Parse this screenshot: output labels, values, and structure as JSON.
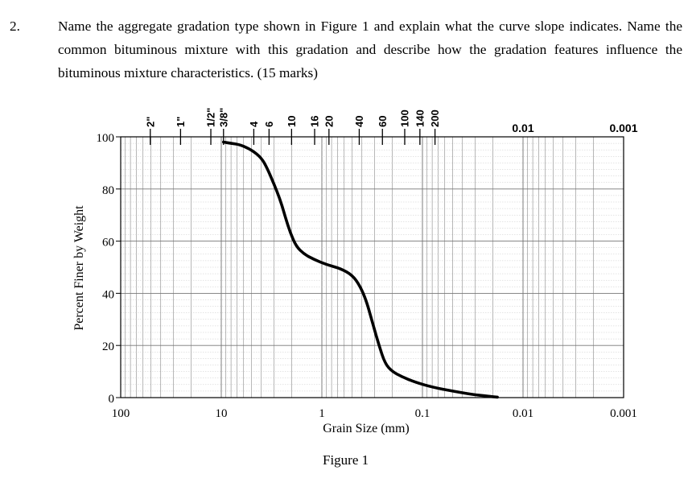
{
  "question": {
    "number": "2.",
    "text": "Name the aggregate gradation type shown in Figure 1 and explain what the curve slope indicates. Name the common bituminous mixture with this gradation and describe how the gradation features influence the bituminous mixture characteristics. (15 marks)"
  },
  "figure_caption": "Figure 1",
  "chart_data": {
    "type": "line",
    "title": "",
    "xlabel": "Grain Size (mm)",
    "ylabel": "Percent Finer by Weight",
    "x_scale": "log",
    "x_reversed": true,
    "xlim": [
      100,
      0.001
    ],
    "ylim": [
      0,
      100
    ],
    "grid": true,
    "x_tick_labels": [
      "100",
      "10",
      "1",
      "0.1",
      "0.01",
      "0.001"
    ],
    "x_top_tick_labels": [
      "0.01",
      "0.001"
    ],
    "y_tick_labels": [
      "0",
      "20",
      "40",
      "60",
      "80",
      "100"
    ],
    "sieve_labels": [
      "2\"",
      "1\"",
      "1/2\"",
      "3/8\"",
      "4",
      "6",
      "10",
      "16",
      "20",
      "40",
      "60",
      "100",
      "140",
      "200"
    ],
    "sieve_sizes_mm": [
      50.8,
      25.4,
      12.7,
      9.5,
      4.75,
      3.35,
      2.0,
      1.18,
      0.85,
      0.425,
      0.25,
      0.15,
      0.106,
      0.075
    ],
    "series": [
      {
        "name": "",
        "points": [
          [
            9.5,
            98
          ],
          [
            8.0,
            97.5
          ],
          [
            6.5,
            97
          ],
          [
            5.0,
            95
          ],
          [
            4.0,
            92
          ],
          [
            3.5,
            88
          ],
          [
            3.0,
            82
          ],
          [
            2.6,
            76
          ],
          [
            2.3,
            69
          ],
          [
            2.05,
            63
          ],
          [
            1.8,
            58
          ],
          [
            1.5,
            55
          ],
          [
            1.2,
            53
          ],
          [
            0.9,
            51
          ],
          [
            0.65,
            49.5
          ],
          [
            0.5,
            47
          ],
          [
            0.42,
            43
          ],
          [
            0.36,
            37
          ],
          [
            0.31,
            28
          ],
          [
            0.27,
            20
          ],
          [
            0.235,
            13
          ],
          [
            0.2,
            10
          ],
          [
            0.16,
            8
          ],
          [
            0.12,
            6
          ],
          [
            0.08,
            4
          ],
          [
            0.05,
            2.5
          ],
          [
            0.032,
            1.2
          ],
          [
            0.022,
            0.5
          ],
          [
            0.018,
            0.2
          ]
        ]
      }
    ]
  }
}
